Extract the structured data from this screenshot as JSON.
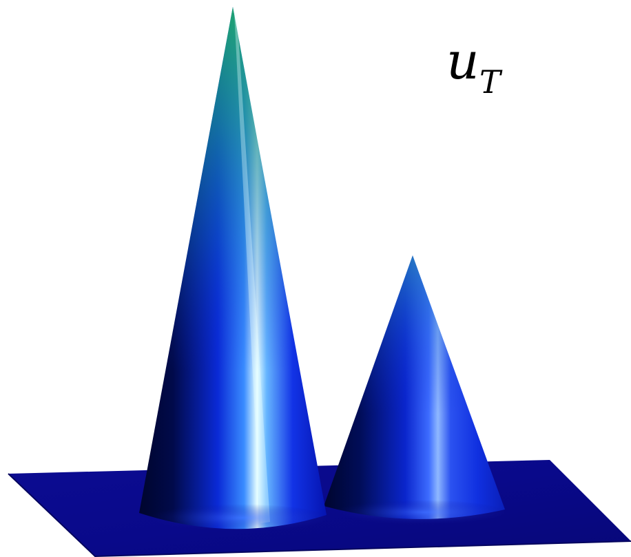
{
  "figure": {
    "label": {
      "main": "u",
      "subscript": "T"
    },
    "colors": {
      "background": "#ffffff",
      "plane": "#0a0a8c",
      "plane_edge": "#05055e",
      "cone_dark": "#00052e",
      "cone_mid": "#0a1fd0",
      "cone_bright": "#3d6cff",
      "highlight": "#e8ffff",
      "tip_green": "#1ea66a",
      "tip_teal": "#2a8fb8",
      "label": "#000000"
    }
  }
}
